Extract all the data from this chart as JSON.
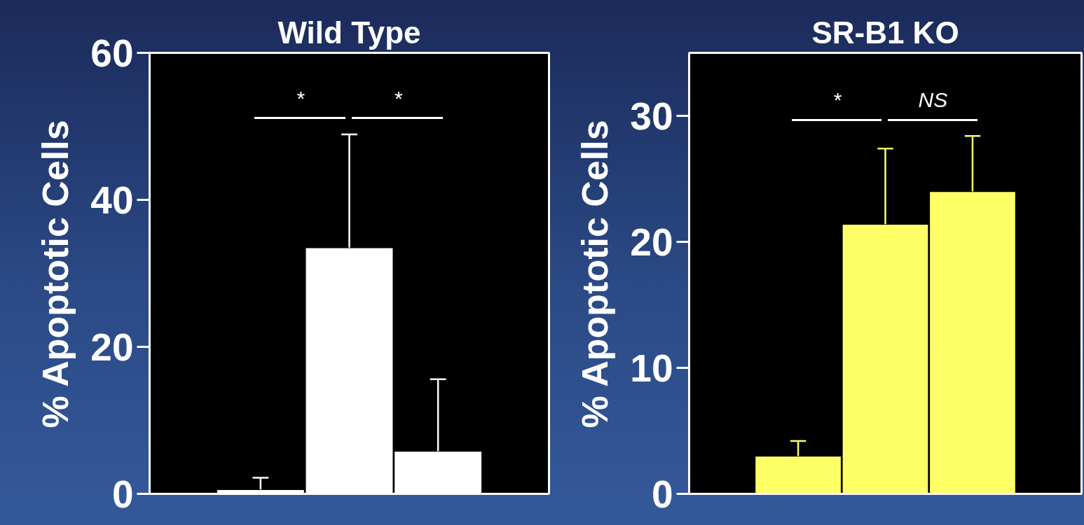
{
  "chart_data": [
    {
      "type": "bar",
      "title": "Wild Type",
      "ylabel": "% Apoptotic Cells",
      "categories": [
        null,
        null,
        null
      ],
      "values": [
        0.6,
        33.5,
        5.8
      ],
      "errors": [
        [
          0.6,
          2.2
        ],
        [
          33.5,
          48.9
        ],
        [
          5.8,
          15.6
        ]
      ],
      "color": "#ffffff",
      "ylim": [
        0,
        60
      ],
      "yticks": [
        0,
        20,
        40,
        60
      ],
      "tick_labels": "y",
      "annotations": [
        "*",
        "*"
      ]
    },
    {
      "type": "bar",
      "title": "SR-B1 KO",
      "ylabel": "% Apoptotic Cells",
      "categories": [
        null,
        null,
        null
      ],
      "values": [
        3.0,
        21.4,
        24.0
      ],
      "errors": [
        [
          3.0,
          4.2
        ],
        [
          21.4,
          27.4
        ],
        [
          24.0,
          28.4
        ]
      ],
      "color": "#ffff66",
      "ylim": [
        0,
        35
      ],
      "yticks": [
        0,
        10,
        20,
        30
      ],
      "tick_labels": "y",
      "annotations": [
        "*",
        "NS"
      ]
    }
  ]
}
